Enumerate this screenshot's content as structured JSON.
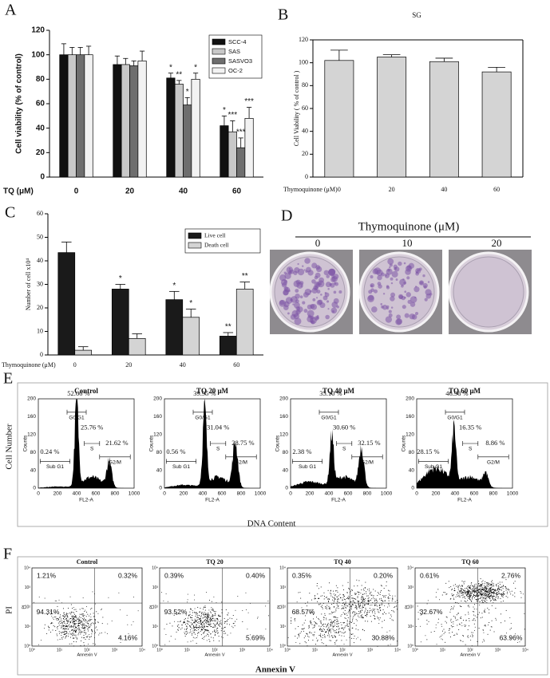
{
  "panel_labels": [
    "A",
    "B",
    "C",
    "D",
    "E",
    "F"
  ],
  "chart_data": [
    {
      "type": "bar",
      "ylabel": "Cell viability (% of control)",
      "xlabel": "TQ (μM)",
      "categories": [
        "0",
        "20",
        "40",
        "60"
      ],
      "series": [
        {
          "name": "SCC-4",
          "color": "#111111",
          "values": [
            100,
            92,
            81,
            42
          ],
          "errors": [
            9,
            7,
            4,
            8
          ],
          "annotations": [
            null,
            null,
            "*",
            "*"
          ]
        },
        {
          "name": "SAS",
          "color": "#c8c8c8",
          "values": [
            100,
            92,
            76,
            37
          ],
          "errors": [
            6,
            5,
            3,
            9
          ],
          "annotations": [
            null,
            null,
            "**",
            "***"
          ]
        },
        {
          "name": "SASVO3",
          "color": "#6e6e6e",
          "values": [
            100,
            91,
            59,
            24
          ],
          "errors": [
            6,
            4,
            6,
            8
          ],
          "annotations": [
            null,
            null,
            "*",
            "***"
          ]
        },
        {
          "name": "OC-2",
          "color": "#f2f2f2",
          "values": [
            100,
            95,
            80,
            48
          ],
          "errors": [
            7,
            8,
            5,
            9
          ],
          "annotations": [
            null,
            null,
            "*",
            "***"
          ]
        }
      ],
      "ylim": [
        0,
        120
      ],
      "yticks": [
        0,
        20,
        40,
        60,
        80,
        100,
        120
      ],
      "legend": "upper-right"
    },
    {
      "type": "bar",
      "title": "SG",
      "ylabel": "Cell Viability ( % of control )",
      "xlabel": "Thymoquinone (μM)",
      "categories": [
        "0",
        "20",
        "40",
        "60"
      ],
      "color": "#d4d4d4",
      "values": [
        102,
        105,
        101,
        92
      ],
      "errors": [
        9,
        2,
        3,
        4
      ],
      "ylim": [
        0,
        120
      ],
      "yticks": [
        0,
        20,
        40,
        60,
        80,
        100,
        120
      ]
    },
    {
      "type": "bar",
      "ylabel": "Number of cell x10⁴",
      "xlabel": "Thymoquinone (μM)",
      "categories": [
        "0",
        "20",
        "40",
        "60"
      ],
      "series": [
        {
          "name": "Live cell",
          "color": "#1a1a1a",
          "values": [
            43.5,
            28,
            23.5,
            8
          ],
          "errors": [
            4.5,
            2,
            3.5,
            1.5
          ],
          "annotations": [
            null,
            "*",
            "*",
            "**"
          ]
        },
        {
          "name": "Death cell",
          "color": "#d4d4d4",
          "values": [
            2,
            7,
            16,
            28
          ],
          "errors": [
            1.5,
            2,
            3.5,
            3
          ],
          "annotations": [
            null,
            null,
            "*",
            "**"
          ]
        }
      ],
      "ylim": [
        0,
        60
      ],
      "yticks": [
        0,
        10,
        20,
        30,
        40,
        50,
        60
      ],
      "legend": "upper-right"
    }
  ],
  "colony_assay": {
    "title": "Thymoquinone (μM)",
    "doses": [
      "0",
      "10",
      "20"
    ]
  },
  "cell_cycle": {
    "ylabel": "Cell Number",
    "xlabel": "DNA Content",
    "axis_x": "FL2-A",
    "axis_y": "Counts",
    "xticks": [
      "0",
      "200",
      "400",
      "600",
      "800",
      "1000"
    ],
    "yticks": [
      "0",
      "40",
      "80",
      "120",
      "160",
      "200"
    ],
    "gates": [
      "Sub G1",
      "G0/G1",
      "S",
      "G2/M"
    ],
    "plots": [
      {
        "title": "Control",
        "percentages": [
          "0.24 %",
          "52.66 %",
          "25.76 %",
          "21.62 %"
        ]
      },
      {
        "title": "TQ 20 μM",
        "percentages": [
          "0.56 %",
          "39.95 %",
          "31.04 %",
          "28.75 %"
        ]
      },
      {
        "title": "TQ 40 μM",
        "percentages": [
          "2.38 %",
          "35.10 %",
          "30.60 %",
          "32.15 %"
        ]
      },
      {
        "title": "TQ 60 μM",
        "percentages": [
          "28.15 %",
          "46.98 %",
          "16.35 %",
          "8.86 %"
        ]
      }
    ]
  },
  "apoptosis": {
    "ylabel": "PI",
    "xlabel": "Annexin V",
    "axis_x": "Annexin V",
    "axis_y": "PI",
    "ticks": [
      "10⁰",
      "10¹",
      "10²",
      "10³",
      "10⁴"
    ],
    "plots": [
      {
        "title": "Control",
        "quadrants": [
          "1.21%",
          "0.32%",
          "94.31%",
          "4.16%"
        ]
      },
      {
        "title": "TQ 20",
        "quadrants": [
          "0.39%",
          "0.40%",
          "93.52%",
          "5.69%"
        ]
      },
      {
        "title": "TQ 40",
        "quadrants": [
          "0.35%",
          "0.20%",
          "68.57%",
          "30.88%"
        ]
      },
      {
        "title": "TQ 60",
        "quadrants": [
          "0.61%",
          "2.76%",
          "32.67%",
          "63.96%"
        ]
      }
    ]
  }
}
